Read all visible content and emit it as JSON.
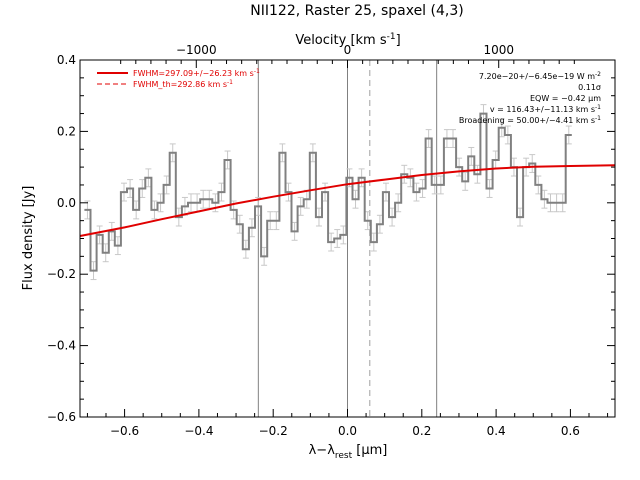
{
  "chart_data": {
    "type": "line",
    "title": "NII122, Raster 25, spaxel (4,3)",
    "xlabel": "λ−λ",
    "xlabel_sub": "rest",
    "xlabel_unit": " [μm]",
    "ylabel": "Flux density [Jy]",
    "top_axis_label": "Velocity [km s",
    "top_axis_label_sup": "-1",
    "top_axis_label_end": "]",
    "xlim": [
      -0.72,
      0.72
    ],
    "ylim": [
      -0.6,
      0.4
    ],
    "xticks": [
      -0.6,
      -0.4,
      -0.2,
      0.0,
      0.2,
      0.4,
      0.6
    ],
    "xtick_labels": [
      "−0.6",
      "−0.4",
      "−0.2",
      "0.0",
      "0.2",
      "0.4",
      "0.6"
    ],
    "yticks": [
      -0.6,
      -0.4,
      -0.2,
      0.0,
      0.2,
      0.4
    ],
    "ytick_labels": [
      "−0.6",
      "−0.4",
      "−0.2",
      "0.0",
      "0.2",
      "0.4"
    ],
    "top_ticks": [
      -1000,
      0,
      1000
    ],
    "top_tick_labels": [
      "−1000",
      "0",
      "1000"
    ],
    "top_axis_factor_um_per_kms": 0.000407,
    "vertical_lines": [
      -0.24,
      0.0,
      0.24
    ],
    "dashed_line": 0.06,
    "step_series": {
      "color": "#808080",
      "x_start": -0.7,
      "x_step": 0.0164,
      "values": [
        -0.02,
        -0.19,
        -0.09,
        -0.14,
        -0.08,
        -0.12,
        0.03,
        0.04,
        -0.02,
        0.04,
        0.07,
        -0.02,
        0.0,
        0.05,
        0.14,
        -0.04,
        -0.01,
        0.0,
        0.0,
        0.01,
        0.01,
        0.0,
        0.03,
        0.12,
        -0.02,
        -0.06,
        -0.13,
        -0.07,
        -0.01,
        -0.15,
        -0.05,
        -0.05,
        0.14,
        0.03,
        -0.08,
        -0.01,
        0.01,
        0.14,
        -0.04,
        0.03,
        -0.11,
        -0.1,
        -0.09,
        0.07,
        0.01,
        0.07,
        -0.05,
        -0.11,
        -0.06,
        0.03,
        -0.04,
        0.0,
        0.08,
        0.07,
        0.03,
        0.04,
        0.18,
        0.05,
        0.05,
        0.18,
        0.18,
        0.1,
        0.06,
        0.13,
        0.08,
        0.25,
        0.04,
        0.12,
        0.21,
        0.19,
        0.1,
        -0.04,
        0.1,
        0.11,
        0.05,
        0.01,
        0.0,
        0.0,
        0.0,
        0.19
      ]
    },
    "error_bar": 0.025,
    "fit": {
      "color": "#e00000",
      "x": [
        -0.72,
        -0.6,
        -0.5,
        -0.4,
        -0.3,
        -0.2,
        -0.1,
        0.0,
        0.1,
        0.2,
        0.3,
        0.4,
        0.5,
        0.6,
        0.72
      ],
      "y": [
        -0.093,
        -0.069,
        -0.046,
        -0.024,
        -0.002,
        0.017,
        0.035,
        0.052,
        0.065,
        0.078,
        0.088,
        0.096,
        0.101,
        0.103,
        0.105
      ]
    },
    "legend": [
      {
        "text": "FWHM=297.09+/−26.23 km s",
        "sup": "-1",
        "style": "solid",
        "color": "#e00000"
      },
      {
        "text": "FWHM_th=292.86 km s",
        "sup": "-1",
        "style": "dashed",
        "color": "#e00000"
      }
    ],
    "annotations": [
      {
        "text": "7.20e−20+/−6.45e−19 W m",
        "sup": "-2"
      },
      {
        "text": "0.11σ",
        "sup": ""
      },
      {
        "text": "EQW = −0.42 μm",
        "sup": ""
      },
      {
        "text": "v = 116.43+/−11.13 km s",
        "sup": "-1"
      },
      {
        "text": "Broadening = 50.00+/−4.41 km s",
        "sup": "-1"
      }
    ]
  }
}
